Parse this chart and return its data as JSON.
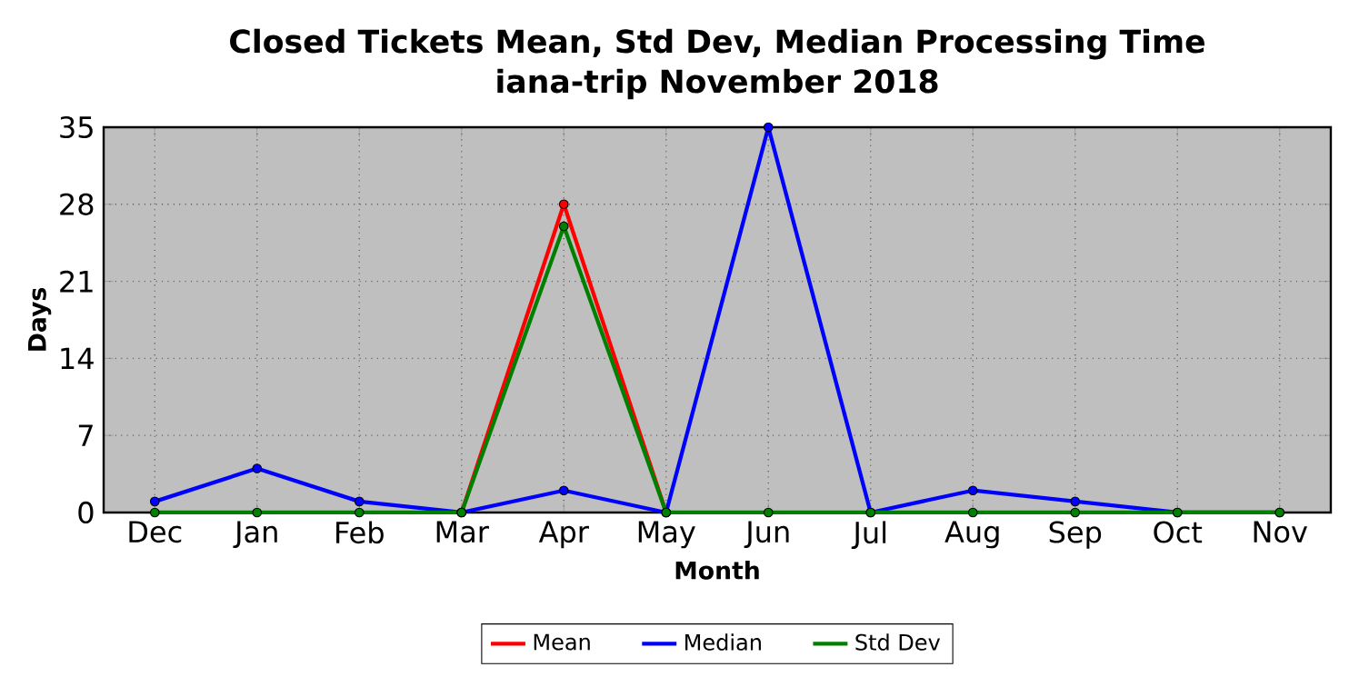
{
  "chart_data": {
    "type": "line",
    "title": "Closed Tickets Mean, Std Dev, Median Processing Time",
    "subtitle": "iana-trip November 2018",
    "xlabel": "Month",
    "ylabel": "Days",
    "categories": [
      "Dec",
      "Jan",
      "Feb",
      "Mar",
      "Apr",
      "May",
      "Jun",
      "Jul",
      "Aug",
      "Sep",
      "Oct",
      "Nov"
    ],
    "series": [
      {
        "name": "Mean",
        "color": "#ff0000",
        "values": [
          null,
          null,
          null,
          0,
          28,
          0,
          null,
          null,
          null,
          null,
          null,
          null
        ]
      },
      {
        "name": "Median",
        "color": "#0000ff",
        "values": [
          1,
          4,
          1,
          0,
          2,
          0,
          35,
          0,
          2,
          1,
          0,
          0
        ]
      },
      {
        "name": "Std Dev",
        "color": "#008000",
        "values": [
          0,
          0,
          0,
          0,
          26,
          0,
          0,
          0,
          0,
          0,
          0,
          0
        ]
      }
    ],
    "ylim": [
      0,
      35
    ],
    "yticks": [
      0,
      7,
      14,
      21,
      28,
      35
    ],
    "grid": true,
    "legend": "bottom",
    "marker": "circle",
    "line_style": "solid"
  }
}
